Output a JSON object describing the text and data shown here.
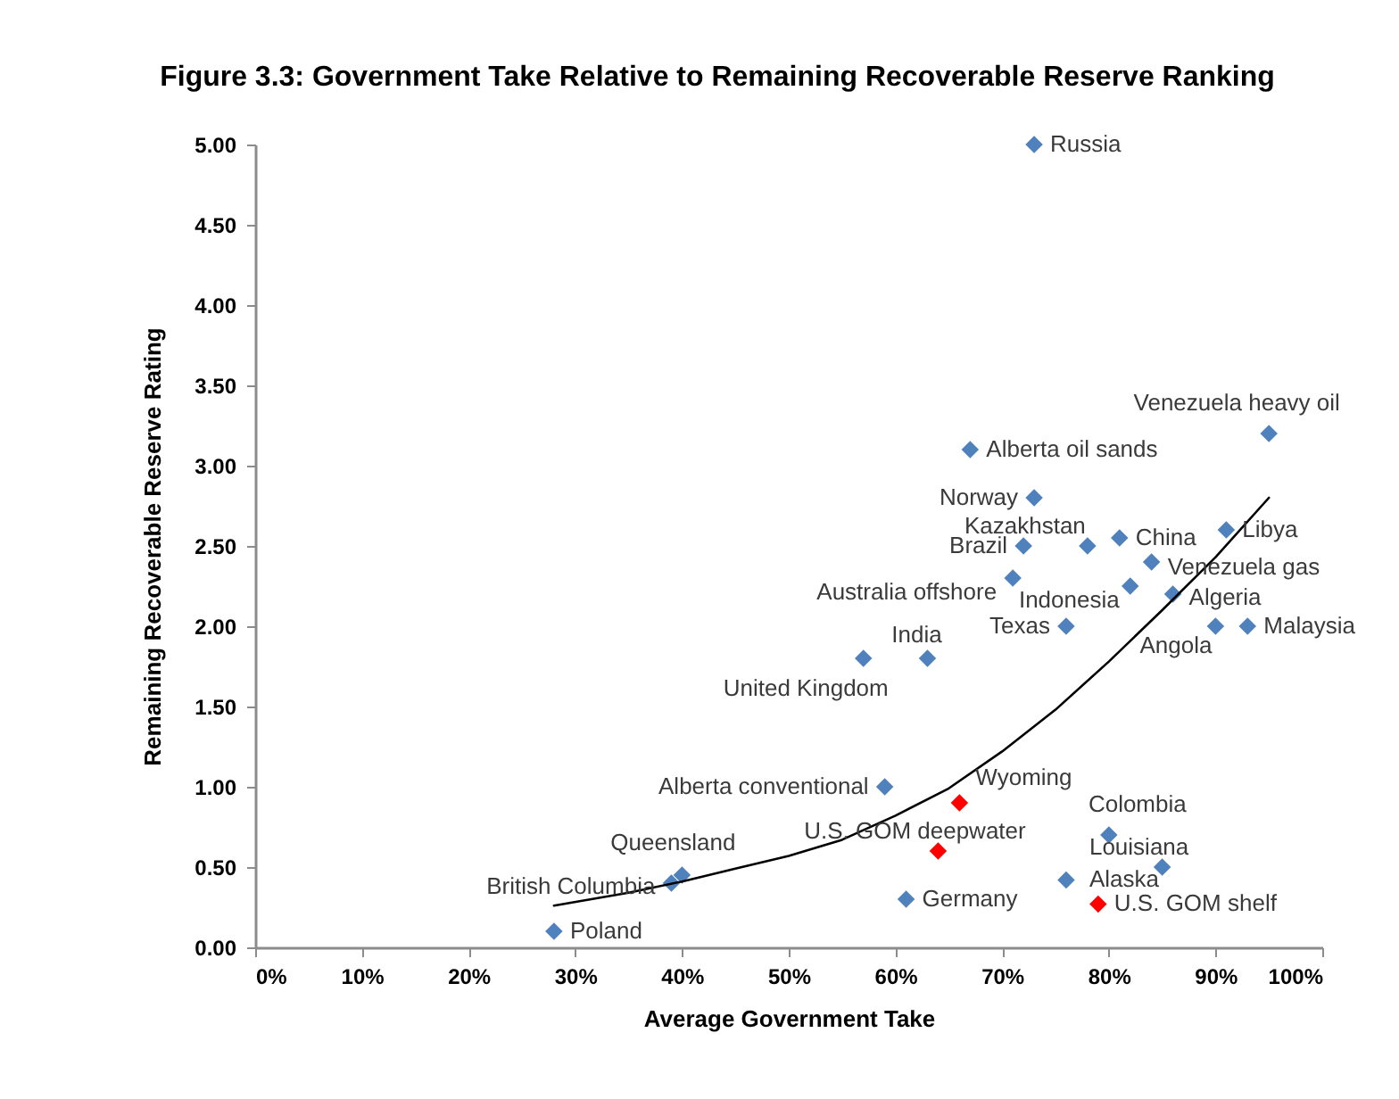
{
  "chart_data": {
    "type": "scatter",
    "title": "Figure 3.3: Government Take Relative to Remaining Recoverable Reserve Ranking",
    "xlabel": "Average Government Take",
    "ylabel": "Remaining Recoverable Reserve Rating",
    "xlim": [
      0,
      100
    ],
    "xticks": [
      {
        "value": 0,
        "label": "0%"
      },
      {
        "value": 10,
        "label": "10%"
      },
      {
        "value": 20,
        "label": "20%"
      },
      {
        "value": 30,
        "label": "30%"
      },
      {
        "value": 40,
        "label": "40%"
      },
      {
        "value": 50,
        "label": "50%"
      },
      {
        "value": 60,
        "label": "60%"
      },
      {
        "value": 70,
        "label": "70%"
      },
      {
        "value": 80,
        "label": "80%"
      },
      {
        "value": 90,
        "label": "90%"
      },
      {
        "value": 100,
        "label": "100%"
      }
    ],
    "ylim": [
      0,
      5
    ],
    "yticks": [
      {
        "value": 0,
        "label": "0.00"
      },
      {
        "value": 0.5,
        "label": "0.50"
      },
      {
        "value": 1,
        "label": "1.00"
      },
      {
        "value": 1.5,
        "label": "1.50"
      },
      {
        "value": 2,
        "label": "2.00"
      },
      {
        "value": 2.5,
        "label": "2.50"
      },
      {
        "value": 3,
        "label": "3.00"
      },
      {
        "value": 3.5,
        "label": "3.50"
      },
      {
        "value": 4,
        "label": "4.00"
      },
      {
        "value": 4.5,
        "label": "4.50"
      },
      {
        "value": 5,
        "label": "5.00"
      }
    ],
    "marker": "diamond",
    "series": [
      {
        "type": "scatter",
        "x": [
          73,
          95,
          67,
          73,
          78,
          72,
          81,
          91,
          84,
          71,
          82,
          86,
          76,
          90,
          93,
          63,
          57,
          59,
          66,
          64,
          80,
          85,
          76,
          61,
          79,
          40,
          39,
          28
        ],
        "values": [
          5.0,
          3.2,
          3.1,
          2.8,
          2.5,
          2.5,
          2.55,
          2.6,
          2.4,
          2.3,
          2.25,
          2.2,
          2.0,
          2.0,
          2.0,
          1.8,
          1.8,
          1.0,
          0.9,
          0.6,
          0.7,
          0.5,
          0.42,
          0.3,
          0.27,
          0.45,
          0.4,
          0.1
        ],
        "colors": [
          "#4f81bd",
          "#4f81bd",
          "#4f81bd",
          "#4f81bd",
          "#4f81bd",
          "#4f81bd",
          "#4f81bd",
          "#4f81bd",
          "#4f81bd",
          "#4f81bd",
          "#4f81bd",
          "#4f81bd",
          "#4f81bd",
          "#4f81bd",
          "#4f81bd",
          "#4f81bd",
          "#4f81bd",
          "#4f81bd",
          "#ff0000",
          "#ff0000",
          "#4f81bd",
          "#4f81bd",
          "#4f81bd",
          "#4f81bd",
          "#ff0000",
          "#4f81bd",
          "#4f81bd",
          "#4f81bd"
        ]
      },
      {
        "type": "line",
        "color": "#000000",
        "marker": "none",
        "line_style": "solid",
        "x": [
          28,
          35,
          40,
          45,
          50,
          55,
          60,
          65,
          70,
          75,
          80,
          85,
          90,
          95
        ],
        "values": [
          0.26,
          0.34,
          0.41,
          0.49,
          0.57,
          0.67,
          0.82,
          0.99,
          1.22,
          1.48,
          1.78,
          2.1,
          2.43,
          2.8
        ]
      }
    ],
    "annotations": [
      {
        "text": "Russia",
        "x": 73,
        "y": 5.0
      },
      {
        "text": "Venezuela heavy oil",
        "x": 95,
        "y": 3.2
      },
      {
        "text": "Alberta oil sands",
        "x": 67,
        "y": 3.1
      },
      {
        "text": "Norway",
        "x": 73,
        "y": 2.8
      },
      {
        "text": "Kazakhstan",
        "x": 78,
        "y": 2.5
      },
      {
        "text": "Brazil",
        "x": 72,
        "y": 2.5
      },
      {
        "text": "China",
        "x": 81,
        "y": 2.55
      },
      {
        "text": "Libya",
        "x": 91,
        "y": 2.6
      },
      {
        "text": "Venezuela gas",
        "x": 84,
        "y": 2.4
      },
      {
        "text": "Australia offshore",
        "x": 71,
        "y": 2.3
      },
      {
        "text": "Indonesia",
        "x": 82,
        "y": 2.25
      },
      {
        "text": "Algeria",
        "x": 86,
        "y": 2.2
      },
      {
        "text": "Texas",
        "x": 76,
        "y": 2.0
      },
      {
        "text": "Angola",
        "x": 90,
        "y": 2.0
      },
      {
        "text": "Malaysia",
        "x": 93,
        "y": 2.0
      },
      {
        "text": "India",
        "x": 63,
        "y": 1.8
      },
      {
        "text": "United Kingdom",
        "x": 57,
        "y": 1.8
      },
      {
        "text": "Alberta conventional",
        "x": 59,
        "y": 1.0
      },
      {
        "text": "Wyoming",
        "x": 66,
        "y": 0.9
      },
      {
        "text": "U.S. GOM deepwater",
        "x": 64,
        "y": 0.6
      },
      {
        "text": "Colombia",
        "x": 80,
        "y": 0.7
      },
      {
        "text": "Louisiana",
        "x": 85,
        "y": 0.5
      },
      {
        "text": "Alaska",
        "x": 76,
        "y": 0.42
      },
      {
        "text": "Germany",
        "x": 61,
        "y": 0.3
      },
      {
        "text": "U.S. GOM shelf",
        "x": 79,
        "y": 0.27
      },
      {
        "text": "Queensland",
        "x": 40,
        "y": 0.45
      },
      {
        "text": "British Columbia",
        "x": 39,
        "y": 0.4
      },
      {
        "text": "Poland",
        "x": 28,
        "y": 0.1
      }
    ]
  }
}
